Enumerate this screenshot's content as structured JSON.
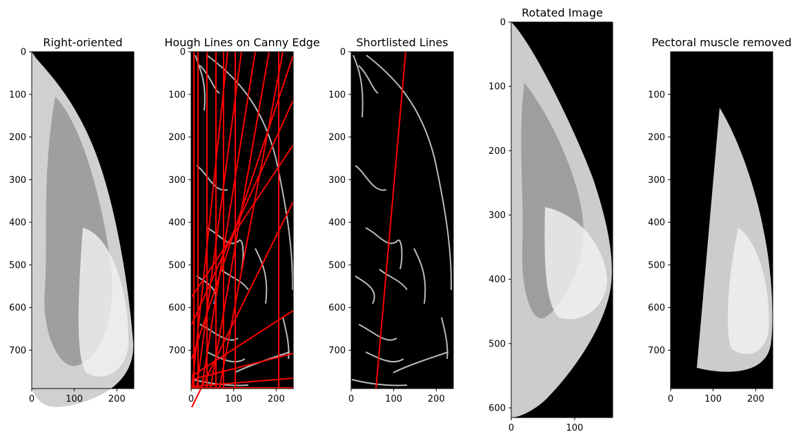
{
  "figure": {
    "colors": {
      "background": "#ffffff",
      "image_background": "#000000",
      "tissue": "#d8d8d8",
      "edge": "#bbbbbb",
      "line": "#ff0000"
    }
  },
  "chart_data": [
    {
      "type": "image",
      "title": "Right-oriented",
      "xlim": [
        0,
        240
      ],
      "ylim": [
        790,
        0
      ],
      "xticks": [
        0,
        100,
        200
      ],
      "yticks": [
        0,
        100,
        200,
        300,
        400,
        500,
        600,
        700
      ],
      "xtick_labels": [
        "0",
        "100",
        "200"
      ],
      "ytick_labels": [
        "0",
        "100",
        "200",
        "300",
        "400",
        "500",
        "600",
        "700"
      ]
    },
    {
      "type": "image",
      "title": "Hough Lines on Canny Edge",
      "xlim": [
        0,
        240
      ],
      "ylim": [
        790,
        0
      ],
      "xticks": [
        0,
        100,
        200
      ],
      "yticks": [
        0,
        100,
        200,
        300,
        400,
        500,
        600,
        700
      ],
      "xtick_labels": [
        "0",
        "100",
        "200"
      ],
      "ytick_labels": [
        "0",
        "100",
        "200",
        "300",
        "400",
        "500",
        "600",
        "700"
      ]
    },
    {
      "type": "image",
      "title": "Shortlisted Lines",
      "xlim": [
        0,
        240
      ],
      "ylim": [
        790,
        0
      ],
      "xticks": [
        0,
        100,
        200
      ],
      "yticks": [
        0,
        100,
        200,
        300,
        400,
        500,
        600,
        700
      ],
      "xtick_labels": [
        "0",
        "100",
        "200"
      ],
      "ytick_labels": [
        "0",
        "100",
        "200",
        "300",
        "400",
        "500",
        "600",
        "700"
      ]
    },
    {
      "type": "image",
      "title": "Rotated Image",
      "xlim": [
        0,
        160
      ],
      "ylim": [
        615,
        0
      ],
      "xticks": [
        0,
        100
      ],
      "yticks": [
        0,
        100,
        200,
        300,
        400,
        500,
        600
      ],
      "xtick_labels": [
        "0",
        "100"
      ],
      "ytick_labels": [
        "0",
        "100",
        "200",
        "300",
        "400",
        "500",
        "600"
      ]
    },
    {
      "type": "image",
      "title": "Pectoral muscle removed",
      "xlim": [
        0,
        240
      ],
      "ylim": [
        790,
        0
      ],
      "xticks": [
        0,
        100,
        200
      ],
      "yticks": [
        100,
        200,
        300,
        400,
        500,
        600,
        700
      ],
      "xtick_labels": [
        "0",
        "100",
        "200"
      ],
      "ytick_labels": [
        "100",
        "200",
        "300",
        "400",
        "500",
        "600",
        "700"
      ]
    }
  ]
}
